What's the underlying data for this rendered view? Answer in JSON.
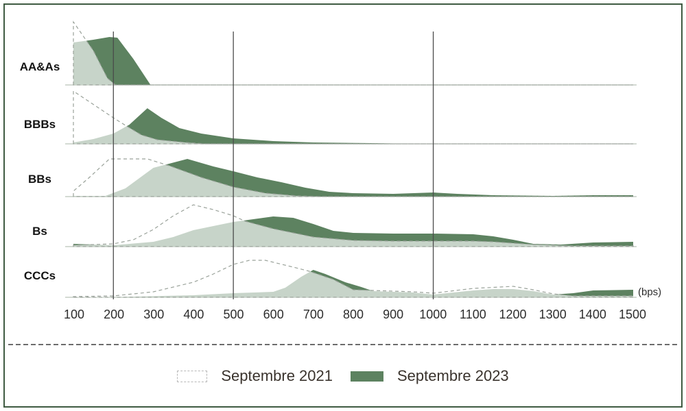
{
  "colors": {
    "accent_green": "#5d8260",
    "overlap_green": "#c6d2c4",
    "dashed_line": "#9aa29a",
    "baseline": "#aab4a7",
    "gridline": "#4b4b4b",
    "frame_border": "#3e5a41",
    "separator": "#3c3c3c",
    "legend_text": "#3a332d"
  },
  "axis": {
    "ticks": [
      "100",
      "200",
      "300",
      "400",
      "500",
      "600",
      "700",
      "800",
      "900",
      "1000",
      "1100",
      "1200",
      "1300",
      "1400",
      "1500"
    ],
    "unit_label": "(bps)"
  },
  "legend": {
    "items": [
      {
        "label": "Septembre 2021",
        "swatch": "dashed-outline"
      },
      {
        "label": "Septembre 2023",
        "swatch": "solid-green"
      }
    ]
  },
  "chart_data": {
    "type": "area",
    "layout": "ridgeline-overlapping-distributions",
    "x_unit": "bps",
    "x_range": [
      100,
      1500
    ],
    "gridlines_bps": [
      200,
      500,
      1000
    ],
    "height_units": "relative density (rendered px above each row baseline)",
    "series_names": [
      "Septembre 2021",
      "Septembre 2023"
    ],
    "note": "Light green = overlap of the two distributions; dark green = Septembre 2023 in excess of Septembre 2021; dashed outline = Septembre 2021.",
    "rows": [
      {
        "label": "AA&As",
        "sept2021": [
          [
            100,
            92
          ],
          [
            150,
            50
          ],
          [
            185,
            10
          ],
          [
            205,
            0
          ],
          [
            1500,
            0
          ]
        ],
        "sept2023": [
          [
            100,
            62
          ],
          [
            150,
            66
          ],
          [
            190,
            70
          ],
          [
            210,
            69
          ],
          [
            250,
            38
          ],
          [
            293,
            0
          ],
          [
            1500,
            0
          ]
        ]
      },
      {
        "label": "BBBs",
        "sept2021": [
          [
            100,
            77
          ],
          [
            200,
            38
          ],
          [
            230,
            27
          ],
          [
            270,
            13
          ],
          [
            310,
            6
          ],
          [
            380,
            2
          ],
          [
            430,
            0
          ],
          [
            1500,
            0
          ]
        ],
        "sept2023": [
          [
            100,
            2
          ],
          [
            150,
            7
          ],
          [
            200,
            15
          ],
          [
            240,
            28
          ],
          [
            285,
            52
          ],
          [
            320,
            38
          ],
          [
            365,
            23
          ],
          [
            420,
            15
          ],
          [
            500,
            8
          ],
          [
            600,
            4
          ],
          [
            700,
            2
          ],
          [
            850,
            1
          ],
          [
            950,
            0
          ],
          [
            1500,
            0
          ]
        ]
      },
      {
        "label": "BBs",
        "sept2021": [
          [
            100,
            8
          ],
          [
            140,
            28
          ],
          [
            190,
            55
          ],
          [
            285,
            55
          ],
          [
            340,
            45
          ],
          [
            420,
            28
          ],
          [
            500,
            14
          ],
          [
            580,
            5
          ],
          [
            660,
            1
          ],
          [
            720,
            0
          ],
          [
            1500,
            0
          ]
        ],
        "sept2023": [
          [
            100,
            1
          ],
          [
            180,
            1
          ],
          [
            230,
            12
          ],
          [
            300,
            42
          ],
          [
            385,
            55
          ],
          [
            450,
            44
          ],
          [
            500,
            37
          ],
          [
            560,
            28
          ],
          [
            620,
            21
          ],
          [
            680,
            13
          ],
          [
            740,
            7
          ],
          [
            800,
            5
          ],
          [
            900,
            4
          ],
          [
            1000,
            6
          ],
          [
            1060,
            4
          ],
          [
            1150,
            2
          ],
          [
            1300,
            1
          ],
          [
            1400,
            2
          ],
          [
            1500,
            2
          ]
        ]
      },
      {
        "label": "Bs",
        "sept2021": [
          [
            100,
            2
          ],
          [
            200,
            4
          ],
          [
            250,
            10
          ],
          [
            300,
            25
          ],
          [
            350,
            45
          ],
          [
            400,
            61
          ],
          [
            450,
            54
          ],
          [
            500,
            45
          ],
          [
            530,
            37
          ],
          [
            600,
            26
          ],
          [
            700,
            14
          ],
          [
            800,
            9
          ],
          [
            900,
            8
          ],
          [
            1000,
            8
          ],
          [
            1100,
            8
          ],
          [
            1150,
            7
          ],
          [
            1250,
            3
          ],
          [
            1350,
            1
          ],
          [
            1500,
            1
          ]
        ],
        "sept2023": [
          [
            100,
            4
          ],
          [
            200,
            2
          ],
          [
            300,
            7
          ],
          [
            350,
            14
          ],
          [
            400,
            24
          ],
          [
            500,
            36
          ],
          [
            600,
            44
          ],
          [
            650,
            42
          ],
          [
            700,
            33
          ],
          [
            750,
            23
          ],
          [
            800,
            20
          ],
          [
            900,
            19
          ],
          [
            1000,
            19
          ],
          [
            1100,
            18
          ],
          [
            1150,
            15
          ],
          [
            1200,
            10
          ],
          [
            1250,
            4
          ],
          [
            1320,
            3
          ],
          [
            1400,
            6
          ],
          [
            1500,
            7
          ]
        ]
      },
      {
        "label": "CCCs",
        "sept2021": [
          [
            100,
            1
          ],
          [
            200,
            2
          ],
          [
            300,
            8
          ],
          [
            400,
            22
          ],
          [
            450,
            34
          ],
          [
            500,
            48
          ],
          [
            540,
            54
          ],
          [
            580,
            54
          ],
          [
            650,
            44
          ],
          [
            690,
            38
          ],
          [
            750,
            26
          ],
          [
            800,
            11
          ],
          [
            850,
            10
          ],
          [
            900,
            9
          ],
          [
            950,
            8
          ],
          [
            1000,
            6
          ],
          [
            1100,
            13
          ],
          [
            1200,
            16
          ],
          [
            1250,
            11
          ],
          [
            1300,
            5
          ],
          [
            1350,
            2
          ],
          [
            1500,
            2
          ]
        ],
        "sept2023": [
          [
            100,
            0
          ],
          [
            250,
            1
          ],
          [
            400,
            3
          ],
          [
            500,
            6
          ],
          [
            600,
            8
          ],
          [
            630,
            14
          ],
          [
            670,
            30
          ],
          [
            700,
            40
          ],
          [
            730,
            34
          ],
          [
            780,
            22
          ],
          [
            820,
            15
          ],
          [
            850,
            9
          ],
          [
            900,
            8
          ],
          [
            950,
            7
          ],
          [
            1000,
            4
          ],
          [
            1050,
            7
          ],
          [
            1100,
            10
          ],
          [
            1150,
            12
          ],
          [
            1200,
            12
          ],
          [
            1250,
            9
          ],
          [
            1300,
            4
          ],
          [
            1350,
            6
          ],
          [
            1400,
            10
          ],
          [
            1500,
            11
          ]
        ]
      }
    ]
  }
}
